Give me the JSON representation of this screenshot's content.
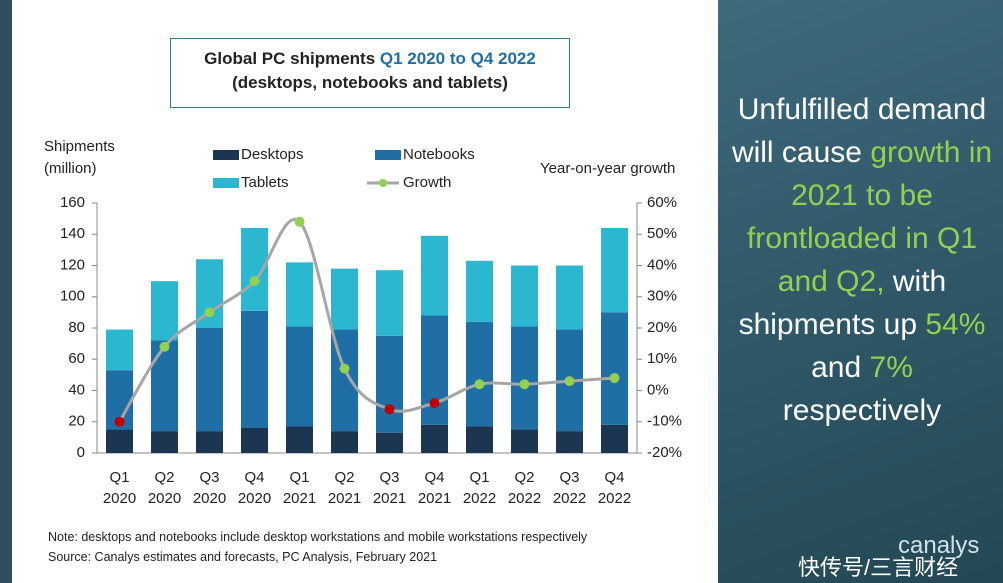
{
  "chart_data": {
    "type": "bar",
    "title": "Global PC shipments",
    "title_highlight": "Q1 2020 to Q4 2022",
    "subtitle": "(desktops, notebooks and tablets)",
    "y_label": "Shipments (million)",
    "y2_label": "Year-on-year growth",
    "categories": [
      "Q1 2020",
      "Q2 2020",
      "Q3 2020",
      "Q4 2020",
      "Q1 2021",
      "Q2 2021",
      "Q3 2021",
      "Q4 2021",
      "Q1 2022",
      "Q2 2022",
      "Q3 2022",
      "Q4 2022"
    ],
    "series": [
      {
        "name": "Desktops",
        "color": "#1c3550",
        "values": [
          15,
          14,
          14,
          16,
          17,
          14,
          13,
          18,
          17,
          15,
          14,
          18
        ]
      },
      {
        "name": "Notebooks",
        "color": "#1f6fa6",
        "values": [
          38,
          58,
          66,
          75,
          64,
          65,
          62,
          70,
          67,
          66,
          65,
          72
        ]
      },
      {
        "name": "Tablets",
        "color": "#2bb7cf",
        "values": [
          26,
          38,
          44,
          53,
          41,
          39,
          42,
          51,
          39,
          39,
          41,
          54
        ]
      },
      {
        "name": "Growth",
        "type": "line",
        "axis": "y2",
        "color": "#92d050",
        "line_color": "#a6a6a6",
        "values": [
          -10,
          14,
          25,
          35,
          54,
          7,
          -6,
          -4,
          2,
          2,
          3,
          4
        ]
      }
    ],
    "ylim": [
      0,
      160
    ],
    "yticks": [
      0,
      20,
      40,
      60,
      80,
      100,
      120,
      140,
      160
    ],
    "y2lim": [
      -20,
      60
    ],
    "y2ticks": [
      {
        "value": -20,
        "label": "-20%"
      },
      {
        "value": -10,
        "label": "-10%"
      },
      {
        "value": 0,
        "label": "0%"
      },
      {
        "value": 10,
        "label": "10%"
      },
      {
        "value": 20,
        "label": "20%"
      },
      {
        "value": 30,
        "label": "30%"
      },
      {
        "value": 40,
        "label": "40%"
      },
      {
        "value": 50,
        "label": "50%"
      },
      {
        "value": 60,
        "label": "60%"
      }
    ],
    "stacked": true,
    "note": "Note: desktops and notebooks include desktop workstations and mobile workstations respectively",
    "source": "Source: Canalys estimates and forecasts, PC Analysis, February 2021"
  },
  "side_panel": {
    "highlight_color": "#92d050",
    "segments": [
      {
        "text": "Unfulfilled demand will cause ",
        "highlight": false
      },
      {
        "text": "growth in 2021 to be frontloaded in Q1 and Q2,",
        "highlight": true
      },
      {
        "text": " with shipments up ",
        "highlight": false
      },
      {
        "text": "54%",
        "highlight": true
      },
      {
        "text": " and ",
        "highlight": false
      },
      {
        "text": "7%",
        "highlight": true
      },
      {
        "text": " respectively",
        "highlight": false
      }
    ]
  },
  "watermark": "快传号/三言财经",
  "logo": "canalys"
}
